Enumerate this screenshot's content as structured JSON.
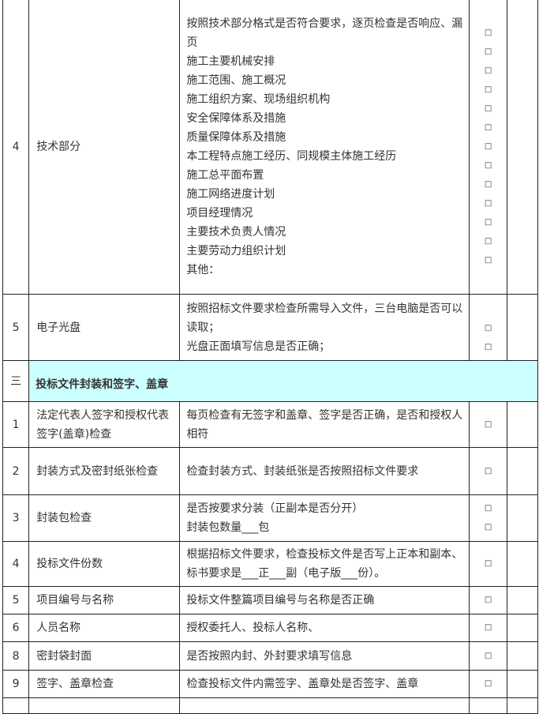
{
  "checkbox_glyph": "□",
  "section_color": "#ccffff",
  "rows_a": [
    {
      "num": "4",
      "item": "技术部分",
      "content": [
        "按照技术部分格式是否符合要求，逐页检查是否响应、漏页",
        "施工主要机械安排",
        "施工范围、施工概况",
        "施工组织方案、现场组织机构",
        "安全保障体系及措施",
        "质量保障体系及措施",
        "本工程特点施工经历、同规模主体施工经历",
        "施工总平面布置",
        "施工网络进度计划",
        "项目经理情况",
        "主要技术负责人情况",
        "主要劳动力组织计划",
        "其他："
      ],
      "checkboxes": 13
    },
    {
      "num": "5",
      "item": "电子光盘",
      "content": [
        "按照招标文件要求检查所需导入文件，三台电脑是否可以读取；",
        "光盘正面填写信息是否正确；"
      ],
      "checkboxes": 2
    }
  ],
  "section": {
    "num": "三",
    "title": "投标文件封装和签字、盖章"
  },
  "rows_b": [
    {
      "num": "1",
      "item": "法定代表人签字和授权代表签字(盖章)检查",
      "content": [
        "每页检查有无签字和盖章、签字是否正确，是否和授权人相符"
      ],
      "checkboxes": 1
    },
    {
      "num": "2",
      "item": "封装方式及密封纸张检查",
      "content": [
        "检查封装方式、封装纸张是否按照招标文件要求"
      ],
      "checkboxes": 1
    },
    {
      "num": "3",
      "item": "封装包检查",
      "content": [
        "是否按要求分装（正副本是否分开）",
        "封装包数量___包"
      ],
      "checkboxes": 2
    },
    {
      "num": "4",
      "item": "投标文件份数",
      "content": [
        "根据招标文件要求，检查投标文件是否写上正本和副本、标书要求是___正___副（电子版___份）。"
      ],
      "checkboxes": 1
    },
    {
      "num": "5",
      "item": "项目编号与名称",
      "content": [
        "投标文件整篇项目编号与名称是否正确"
      ],
      "checkboxes": 1
    },
    {
      "num": "6",
      "item": "人员名称",
      "content": [
        "授权委托人、投标人名称、"
      ],
      "checkboxes": 1
    },
    {
      "num": "8",
      "item": "密封袋封面",
      "content": [
        "是否按照内封、外封要求填写信息"
      ],
      "checkboxes": 1
    },
    {
      "num": "9",
      "item": "签字、盖章检查",
      "content": [
        "检查投标文件内需签字、盖章处是否签字、盖章"
      ],
      "checkboxes": 1
    }
  ]
}
